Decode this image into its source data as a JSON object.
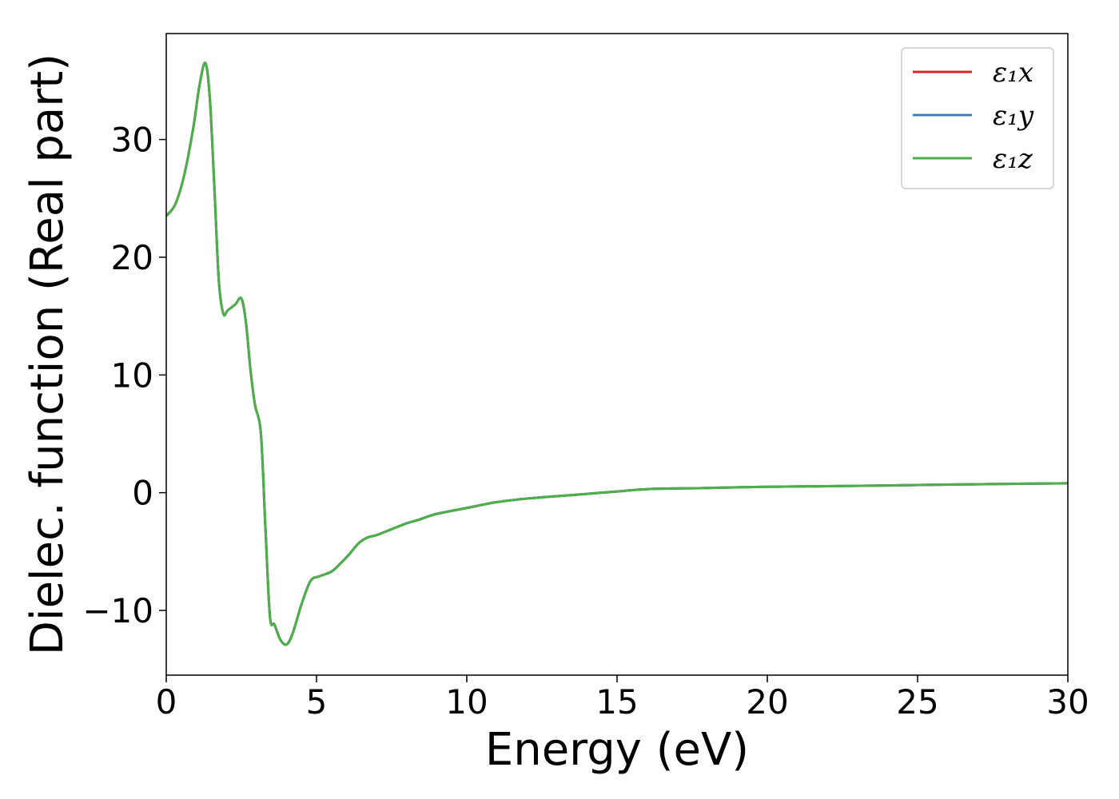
{
  "chart_data": {
    "type": "line",
    "title": "",
    "xlabel": "Energy (eV)",
    "ylabel": "Dielec. function (Real part)",
    "xlim": [
      0,
      30
    ],
    "ylim": [
      -15.5,
      39
    ],
    "xticks": [
      0,
      5,
      10,
      15,
      20,
      25,
      30
    ],
    "xtick_labels": [
      "0",
      "5",
      "10",
      "15",
      "20",
      "25",
      "30"
    ],
    "yticks": [
      -10,
      0,
      10,
      20,
      30
    ],
    "ytick_labels": [
      "−10",
      "0",
      "10",
      "20",
      "30"
    ],
    "grid": false,
    "legend_position": "top-right",
    "series": [
      {
        "name": "ε₁x",
        "color": "#d62728",
        "x": [
          0,
          0.3,
          0.6,
          0.9,
          1.1,
          1.3,
          1.45,
          1.6,
          1.75,
          1.9,
          2.05,
          2.3,
          2.5,
          2.65,
          2.8,
          2.95,
          3.15,
          3.3,
          3.45,
          3.6,
          3.8,
          4.0,
          4.2,
          4.5,
          4.8,
          5.1,
          5.5,
          5.8,
          6.1,
          6.4,
          6.7,
          7.0,
          7.5,
          8.0,
          8.4,
          9.0,
          10.0,
          11.0,
          12.0,
          13.0,
          14.0,
          15.0,
          16.0,
          18.0,
          20.0,
          22.0,
          25.0,
          28.0,
          30.0
        ],
        "y": [
          23.5,
          24.5,
          27.0,
          31.0,
          34.5,
          36.5,
          33.5,
          26.0,
          18.0,
          15.2,
          15.5,
          16.0,
          16.5,
          14.5,
          10.5,
          7.5,
          5.0,
          -3.0,
          -10.5,
          -11.2,
          -12.5,
          -12.9,
          -12.0,
          -9.5,
          -7.5,
          -7.1,
          -6.7,
          -6.0,
          -5.2,
          -4.3,
          -3.8,
          -3.6,
          -3.1,
          -2.6,
          -2.3,
          -1.8,
          -1.3,
          -0.8,
          -0.5,
          -0.3,
          -0.1,
          0.1,
          0.3,
          0.4,
          0.5,
          0.55,
          0.65,
          0.75,
          0.8
        ]
      },
      {
        "name": "ε₁y",
        "color": "#3f7fb8",
        "x": [
          0,
          0.3,
          0.6,
          0.9,
          1.1,
          1.3,
          1.45,
          1.6,
          1.75,
          1.9,
          2.05,
          2.3,
          2.5,
          2.65,
          2.8,
          2.95,
          3.15,
          3.3,
          3.45,
          3.6,
          3.8,
          4.0,
          4.2,
          4.5,
          4.8,
          5.1,
          5.5,
          5.8,
          6.1,
          6.4,
          6.7,
          7.0,
          7.5,
          8.0,
          8.4,
          9.0,
          10.0,
          11.0,
          12.0,
          13.0,
          14.0,
          15.0,
          16.0,
          18.0,
          20.0,
          22.0,
          25.0,
          28.0,
          30.0
        ],
        "y": [
          23.5,
          24.5,
          27.0,
          31.0,
          34.5,
          36.5,
          33.5,
          26.0,
          18.0,
          15.2,
          15.5,
          16.0,
          16.5,
          14.5,
          10.5,
          7.5,
          5.0,
          -3.0,
          -10.5,
          -11.2,
          -12.5,
          -12.9,
          -12.0,
          -9.5,
          -7.5,
          -7.1,
          -6.7,
          -6.0,
          -5.2,
          -4.3,
          -3.8,
          -3.6,
          -3.1,
          -2.6,
          -2.3,
          -1.8,
          -1.3,
          -0.8,
          -0.5,
          -0.3,
          -0.1,
          0.1,
          0.3,
          0.4,
          0.5,
          0.55,
          0.65,
          0.75,
          0.8
        ]
      },
      {
        "name": "ε₁z",
        "color": "#4daf4a",
        "x": [
          0,
          0.3,
          0.6,
          0.9,
          1.1,
          1.3,
          1.45,
          1.6,
          1.75,
          1.9,
          2.05,
          2.3,
          2.5,
          2.65,
          2.8,
          2.95,
          3.15,
          3.3,
          3.45,
          3.6,
          3.8,
          4.0,
          4.2,
          4.5,
          4.8,
          5.1,
          5.5,
          5.8,
          6.1,
          6.4,
          6.7,
          7.0,
          7.5,
          8.0,
          8.4,
          9.0,
          10.0,
          11.0,
          12.0,
          13.0,
          14.0,
          15.0,
          16.0,
          18.0,
          20.0,
          22.0,
          25.0,
          28.0,
          30.0
        ],
        "y": [
          23.5,
          24.5,
          27.0,
          31.0,
          34.5,
          36.5,
          33.5,
          26.0,
          18.0,
          15.2,
          15.5,
          16.0,
          16.5,
          14.5,
          10.5,
          7.5,
          5.0,
          -3.0,
          -10.5,
          -11.2,
          -12.5,
          -12.9,
          -12.0,
          -9.5,
          -7.5,
          -7.1,
          -6.7,
          -6.0,
          -5.2,
          -4.3,
          -3.8,
          -3.6,
          -3.1,
          -2.6,
          -2.3,
          -1.8,
          -1.3,
          -0.8,
          -0.5,
          -0.3,
          -0.1,
          0.1,
          0.3,
          0.4,
          0.5,
          0.55,
          0.65,
          0.75,
          0.8
        ]
      }
    ]
  }
}
